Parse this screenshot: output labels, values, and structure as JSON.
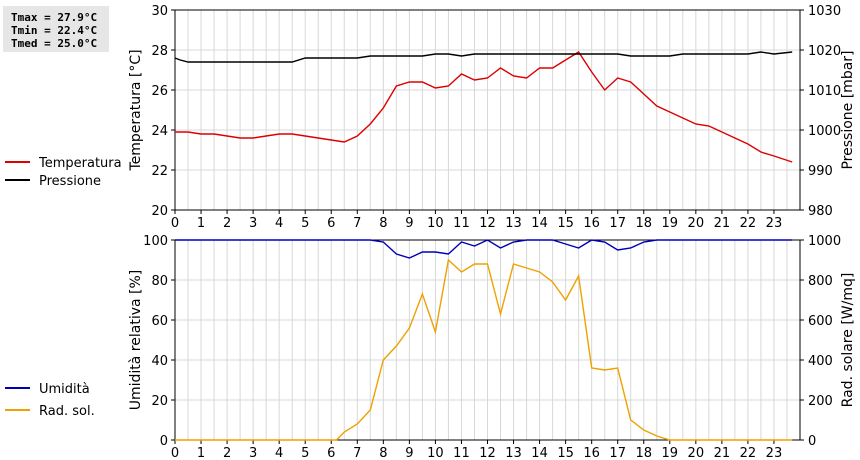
{
  "stats": {
    "tmax": "Tmax = 27.9°C",
    "tmin": "Tmin = 22.4°C",
    "tmed": "Tmed = 25.0°C"
  },
  "colors": {
    "temperatura": "#dd0000",
    "pressione": "#000000",
    "umidita": "#0000bb",
    "radsol": "#f0a000",
    "grid": "#d8d8d8"
  },
  "chart_data": [
    {
      "type": "line",
      "ylabel": "Temperatura [°C]",
      "y2label": "Pressione [mbar]",
      "ylim": [
        20,
        30
      ],
      "y2lim": [
        980,
        1030
      ],
      "xlim": [
        0,
        24
      ],
      "xticks": [
        "0",
        "1",
        "2",
        "3",
        "4",
        "5",
        "6",
        "7",
        "8",
        "9",
        "10",
        "11",
        "12",
        "13",
        "14",
        "15",
        "16",
        "17",
        "18",
        "19",
        "20",
        "21",
        "22",
        "23"
      ],
      "yticks": [
        "20",
        "22",
        "24",
        "26",
        "28",
        "30"
      ],
      "y2ticks": [
        "980",
        "990",
        "1000",
        "1010",
        "1020",
        "1030"
      ],
      "grid": true,
      "legend": "left",
      "series": [
        {
          "name": "Temperatura",
          "axis": "left",
          "color": "#dd0000",
          "x": [
            0,
            0.5,
            1,
            1.5,
            2,
            2.5,
            3,
            3.5,
            4,
            4.5,
            5,
            5.5,
            6,
            6.5,
            7,
            7.5,
            8,
            8.5,
            9,
            9.5,
            10,
            10.5,
            11,
            11.5,
            12,
            12.5,
            13,
            13.5,
            14,
            14.5,
            15,
            15.5,
            16,
            16.5,
            17,
            17.5,
            18,
            18.5,
            19,
            19.5,
            20,
            20.5,
            21,
            21.5,
            22,
            22.5,
            23,
            23.7
          ],
          "y": [
            23.9,
            23.9,
            23.8,
            23.8,
            23.7,
            23.6,
            23.6,
            23.7,
            23.8,
            23.8,
            23.7,
            23.6,
            23.5,
            23.4,
            23.7,
            24.3,
            25.1,
            26.2,
            26.4,
            26.4,
            26.1,
            26.2,
            26.8,
            26.5,
            26.6,
            27.1,
            26.7,
            26.6,
            27.1,
            27.1,
            27.5,
            27.9,
            26.9,
            26.0,
            26.6,
            26.4,
            25.8,
            25.2,
            24.9,
            24.6,
            24.3,
            24.2,
            23.9,
            23.6,
            23.3,
            22.9,
            22.7,
            22.4
          ]
        },
        {
          "name": "Pressione",
          "axis": "right",
          "color": "#000000",
          "x": [
            0,
            0.2,
            0.5,
            1,
            2,
            3,
            4,
            4.5,
            5,
            6,
            7,
            7.5,
            8,
            9,
            9.5,
            10,
            10.5,
            11,
            11.5,
            12,
            13,
            14,
            15,
            16,
            17,
            17.5,
            18,
            19,
            19.5,
            20,
            21,
            22,
            22.5,
            23,
            23.7
          ],
          "y": [
            1018,
            1017.5,
            1017,
            1017,
            1017,
            1017,
            1017,
            1017,
            1018,
            1018,
            1018,
            1018.5,
            1018.5,
            1018.5,
            1018.5,
            1019,
            1019,
            1018.5,
            1019,
            1019,
            1019,
            1019,
            1019,
            1019,
            1019,
            1018.5,
            1018.5,
            1018.5,
            1019,
            1019,
            1019,
            1019,
            1019.5,
            1019,
            1019.5
          ]
        }
      ]
    },
    {
      "type": "line",
      "ylabel": "Umidità relativa [%]",
      "y2label": "Rad. solare [W/mq]",
      "ylim": [
        0,
        100
      ],
      "y2lim": [
        0,
        1000
      ],
      "xlim": [
        0,
        24
      ],
      "xticks": [
        "0",
        "1",
        "2",
        "3",
        "4",
        "5",
        "6",
        "7",
        "8",
        "9",
        "10",
        "11",
        "12",
        "13",
        "14",
        "15",
        "16",
        "17",
        "18",
        "19",
        "20",
        "21",
        "22",
        "23"
      ],
      "yticks": [
        "0",
        "20",
        "40",
        "60",
        "80",
        "100"
      ],
      "y2ticks": [
        "0",
        "200",
        "400",
        "600",
        "800",
        "1000"
      ],
      "grid": true,
      "legend": "left",
      "series": [
        {
          "name": "Umidità",
          "axis": "left",
          "color": "#0000bb",
          "x": [
            0,
            1,
            2,
            3,
            4,
            5,
            6,
            7,
            7.5,
            8,
            8.5,
            9,
            9.5,
            10,
            10.5,
            11,
            11.5,
            12,
            12.5,
            13,
            13.5,
            14,
            14.5,
            15,
            15.5,
            16,
            16.5,
            17,
            17.5,
            18,
            18.5,
            19,
            20,
            21,
            22,
            23,
            23.7
          ],
          "y": [
            100,
            100,
            100,
            100,
            100,
            100,
            100,
            100,
            100,
            99,
            93,
            91,
            94,
            94,
            93,
            99,
            97,
            100,
            96,
            99,
            100,
            100,
            100,
            98,
            96,
            100,
            99,
            95,
            96,
            99,
            100,
            100,
            100,
            100,
            100,
            100,
            100
          ]
        },
        {
          "name": "Rad. sol.",
          "axis": "right",
          "color": "#f0a000",
          "x": [
            0,
            1,
            2,
            3,
            4,
            5,
            6,
            6.2,
            6.5,
            7,
            7.5,
            8,
            8.5,
            9,
            9.5,
            10,
            10.5,
            11,
            11.5,
            12,
            12.5,
            13,
            13.5,
            14,
            14.5,
            15,
            15.5,
            16,
            16.5,
            17,
            17.5,
            18,
            18.5,
            19,
            19.5,
            20,
            21,
            22,
            23,
            23.7
          ],
          "y": [
            0,
            0,
            0,
            0,
            0,
            0,
            0,
            0,
            40,
            80,
            150,
            400,
            470,
            560,
            730,
            540,
            900,
            840,
            880,
            880,
            630,
            880,
            860,
            840,
            790,
            700,
            820,
            360,
            350,
            360,
            100,
            50,
            20,
            0,
            0,
            0,
            0,
            0,
            0,
            0
          ]
        }
      ]
    }
  ]
}
